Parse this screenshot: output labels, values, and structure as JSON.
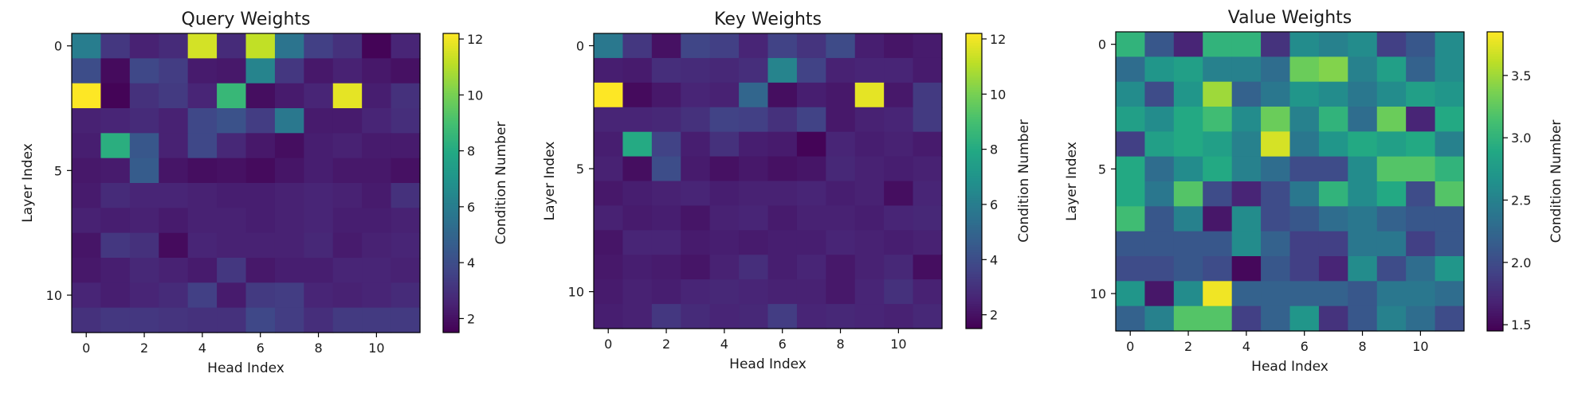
{
  "chart_data": [
    {
      "type": "heatmap",
      "title": "Query Weights",
      "xlabel": "Head Index",
      "ylabel": "Layer Index",
      "colorbar_label": "Condition Number",
      "colormap": "viridis",
      "x_ticks": [
        "0",
        "2",
        "4",
        "6",
        "8",
        "10"
      ],
      "y_ticks": [
        "0",
        "5",
        "10"
      ],
      "colorbar_ticks": [
        "2",
        "4",
        "6",
        "8",
        "10",
        "12"
      ],
      "vmin": 1.5,
      "vmax": 12.2,
      "matrix": [
        [
          6.0,
          3.2,
          2.5,
          2.8,
          11.5,
          2.8,
          11.2,
          5.6,
          3.5,
          3.0,
          1.6,
          2.6
        ],
        [
          4.0,
          1.8,
          3.8,
          3.4,
          2.3,
          2.2,
          6.3,
          3.2,
          2.2,
          2.5,
          2.2,
          2.0
        ],
        [
          12.2,
          1.6,
          3.0,
          3.3,
          2.6,
          8.6,
          1.9,
          2.3,
          2.6,
          11.8,
          2.4,
          3.0
        ],
        [
          2.5,
          2.6,
          2.8,
          2.5,
          3.8,
          4.2,
          3.4,
          5.8,
          2.3,
          2.3,
          2.6,
          2.9
        ],
        [
          2.4,
          8.2,
          4.4,
          2.5,
          3.8,
          2.7,
          2.2,
          1.9,
          2.4,
          2.5,
          2.3,
          2.3
        ],
        [
          2.2,
          2.3,
          4.6,
          2.1,
          1.9,
          2.0,
          1.8,
          2.1,
          2.4,
          2.2,
          2.2,
          2.0
        ],
        [
          2.3,
          2.8,
          2.6,
          2.6,
          2.5,
          2.4,
          2.4,
          2.5,
          2.6,
          2.5,
          2.3,
          3.0
        ],
        [
          2.5,
          2.4,
          2.5,
          2.3,
          2.5,
          2.5,
          2.4,
          2.5,
          2.6,
          2.4,
          2.4,
          2.5
        ],
        [
          2.1,
          3.2,
          3.0,
          1.8,
          2.6,
          2.5,
          2.5,
          2.5,
          2.7,
          2.3,
          2.5,
          2.6
        ],
        [
          2.2,
          2.4,
          2.7,
          2.5,
          2.3,
          3.2,
          2.2,
          2.4,
          2.4,
          2.6,
          2.6,
          2.5
        ],
        [
          2.6,
          2.4,
          2.6,
          2.8,
          3.5,
          2.3,
          3.3,
          3.4,
          2.6,
          2.5,
          2.6,
          2.8
        ],
        [
          3.0,
          3.2,
          3.2,
          3.1,
          3.0,
          3.0,
          3.8,
          3.4,
          2.9,
          3.3,
          3.3,
          3.3
        ]
      ]
    },
    {
      "type": "heatmap",
      "title": "Key Weights",
      "xlabel": "Head Index",
      "ylabel": "Layer Index",
      "colorbar_label": "Condition Number",
      "colormap": "viridis",
      "x_ticks": [
        "0",
        "2",
        "4",
        "6",
        "8",
        "10"
      ],
      "y_ticks": [
        "0",
        "5",
        "10"
      ],
      "colorbar_ticks": [
        "2",
        "4",
        "6",
        "8",
        "10",
        "12"
      ],
      "vmin": 1.5,
      "vmax": 12.2,
      "matrix": [
        [
          5.8,
          3.2,
          2.0,
          3.7,
          3.5,
          2.6,
          3.6,
          3.1,
          3.9,
          2.4,
          2.1,
          2.3
        ],
        [
          2.4,
          2.3,
          2.9,
          2.8,
          2.7,
          2.9,
          6.3,
          3.6,
          2.5,
          2.6,
          2.6,
          2.3
        ],
        [
          12.2,
          1.8,
          2.2,
          2.6,
          2.5,
          5.0,
          1.9,
          2.4,
          2.2,
          11.8,
          2.2,
          3.3
        ],
        [
          2.6,
          2.6,
          2.7,
          3.0,
          3.6,
          3.5,
          3.0,
          3.6,
          2.2,
          2.5,
          2.6,
          3.3
        ],
        [
          2.4,
          8.0,
          3.6,
          2.4,
          3.0,
          2.4,
          2.3,
          1.6,
          2.6,
          2.4,
          2.5,
          2.3
        ],
        [
          2.5,
          1.9,
          4.0,
          2.3,
          2.0,
          2.2,
          2.0,
          2.1,
          2.7,
          2.5,
          2.4,
          2.5
        ],
        [
          2.2,
          2.4,
          2.5,
          2.6,
          2.4,
          2.5,
          2.5,
          2.6,
          2.4,
          2.5,
          1.9,
          2.6
        ],
        [
          2.5,
          2.3,
          2.4,
          2.1,
          2.5,
          2.6,
          2.3,
          2.5,
          2.5,
          2.4,
          2.6,
          2.7
        ],
        [
          2.1,
          2.6,
          2.6,
          2.3,
          2.4,
          2.3,
          2.4,
          2.4,
          2.6,
          2.5,
          2.4,
          2.5
        ],
        [
          2.2,
          2.4,
          2.3,
          2.1,
          2.5,
          2.9,
          2.4,
          2.6,
          2.2,
          2.5,
          2.7,
          1.9
        ],
        [
          2.3,
          2.5,
          2.4,
          2.6,
          2.7,
          2.6,
          2.5,
          2.5,
          2.2,
          2.6,
          3.0,
          2.5
        ],
        [
          2.4,
          2.5,
          3.2,
          2.8,
          2.6,
          2.7,
          3.4,
          2.6,
          2.7,
          2.6,
          2.5,
          2.7
        ]
      ]
    },
    {
      "type": "heatmap",
      "title": "Value Weights",
      "xlabel": "Head Index",
      "ylabel": "Layer Index",
      "colorbar_label": "Condition Number",
      "colormap": "viridis",
      "x_ticks": [
        "0",
        "2",
        "4",
        "6",
        "8",
        "10"
      ],
      "y_ticks": [
        "0",
        "5",
        "10"
      ],
      "colorbar_ticks": [
        "1.5",
        "2.0",
        "2.5",
        "3.0",
        "3.5"
      ],
      "vmin": 1.45,
      "vmax": 3.85,
      "matrix": [
        [
          3.0,
          2.1,
          1.7,
          3.0,
          3.0,
          1.8,
          2.6,
          2.5,
          2.6,
          1.9,
          2.1,
          2.6
        ],
        [
          2.3,
          2.7,
          2.8,
          2.5,
          2.5,
          2.3,
          3.3,
          3.4,
          2.5,
          2.8,
          2.2,
          2.6
        ],
        [
          2.6,
          2.0,
          2.7,
          3.5,
          2.2,
          2.4,
          2.7,
          2.6,
          2.4,
          2.6,
          2.8,
          2.7
        ],
        [
          2.8,
          2.6,
          2.9,
          3.1,
          2.6,
          3.3,
          2.5,
          3.0,
          2.3,
          3.3,
          1.7,
          2.9
        ],
        [
          1.9,
          2.8,
          2.9,
          2.8,
          2.5,
          3.7,
          2.4,
          2.7,
          2.9,
          2.8,
          2.9,
          2.5
        ],
        [
          2.9,
          2.3,
          2.6,
          2.9,
          2.5,
          2.3,
          2.0,
          2.0,
          2.6,
          3.2,
          3.2,
          3.0
        ],
        [
          2.9,
          2.4,
          3.2,
          2.0,
          1.7,
          2.0,
          2.4,
          3.0,
          2.6,
          2.9,
          2.0,
          3.2
        ],
        [
          3.1,
          2.1,
          2.5,
          1.6,
          2.6,
          2.0,
          2.1,
          2.3,
          2.4,
          2.2,
          2.1,
          2.1
        ],
        [
          2.1,
          2.1,
          2.1,
          2.1,
          2.6,
          2.2,
          1.9,
          1.9,
          2.4,
          2.4,
          1.9,
          2.1
        ],
        [
          2.0,
          2.0,
          2.1,
          2.0,
          1.5,
          2.1,
          1.9,
          1.7,
          2.6,
          2.0,
          2.3,
          2.7
        ],
        [
          2.7,
          1.6,
          2.6,
          3.8,
          2.2,
          2.2,
          2.2,
          2.2,
          2.1,
          2.4,
          2.4,
          2.3
        ],
        [
          2.2,
          2.5,
          3.2,
          3.2,
          1.9,
          2.2,
          2.7,
          1.8,
          2.1,
          2.5,
          2.3,
          2.0
        ]
      ]
    }
  ]
}
